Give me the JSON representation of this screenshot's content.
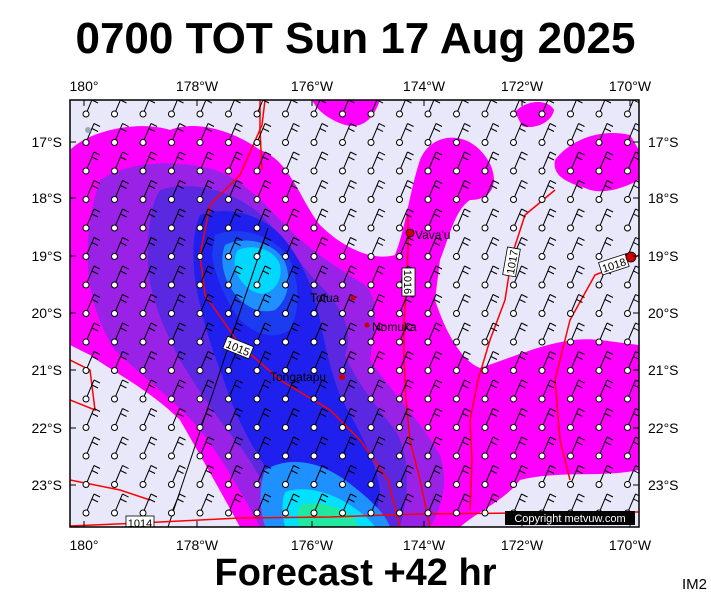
{
  "header": {
    "title": "0700 TOT Sun 17 Aug 2025"
  },
  "footer": {
    "forecast": "Forecast +42 hr",
    "tag": "IM2"
  },
  "map": {
    "lon_ticks_top": [
      "180°",
      "178°W",
      "176°W",
      "174°W",
      "172°W",
      "170°W"
    ],
    "lon_ticks_bottom": [
      "180°",
      "178°W",
      "176°W",
      "174°W",
      "172°W",
      "170°W"
    ],
    "lat_ticks_left": [
      "17°S",
      "18°S",
      "19°S",
      "20°S",
      "21°S",
      "22°S",
      "23°S"
    ],
    "lat_ticks_right": [
      "17°S",
      "18°S",
      "19°S",
      "20°S",
      "21°S",
      "22°S",
      "23°S"
    ],
    "places": [
      {
        "name": "Vava'u",
        "lon": -174.0,
        "lat": -18.65
      },
      {
        "name": "Tofua",
        "lon": -175.05,
        "lat": -19.75
      },
      {
        "name": "Nomuka",
        "lon": -174.8,
        "lat": -20.25
      },
      {
        "name": "Tongatapu",
        "lon": -175.2,
        "lat": -21.13
      }
    ],
    "isobar_labels": [
      "1014",
      "1015",
      "1016",
      "1017",
      "1018"
    ],
    "copyright": "Copyright metvuw.com",
    "colors": {
      "background": "#e8e8fa",
      "magenta": "#ff00ff",
      "purple": "#9a22e6",
      "indigo": "#5a28e0",
      "blue": "#2020ee",
      "deep_blue": "#1c3cf0",
      "light_blue": "#1e90ff",
      "cyan": "#00e0ff",
      "isobar": "#ff0000"
    }
  }
}
